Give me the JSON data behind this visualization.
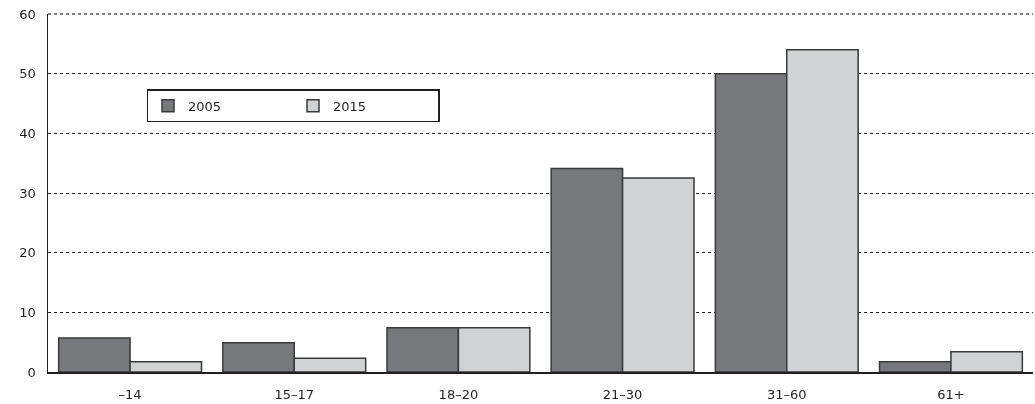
{
  "chart_data": {
    "type": "bar",
    "categories": [
      "–14",
      "15–17",
      "18–20",
      "21–30",
      "31–60",
      "61+"
    ],
    "series": [
      {
        "name": "2005",
        "color": "#77787b",
        "values": [
          5.7,
          4.9,
          7.4,
          34.1,
          50.0,
          1.7
        ]
      },
      {
        "name": "2015",
        "color": "#d1d2d4",
        "values": [
          1.7,
          2.3,
          7.4,
          32.5,
          54.0,
          3.4
        ]
      }
    ],
    "ylim": [
      0,
      60
    ],
    "yticks": [
      0,
      10,
      20,
      30,
      40,
      50,
      60
    ],
    "grid": "y",
    "legend": "top left"
  }
}
